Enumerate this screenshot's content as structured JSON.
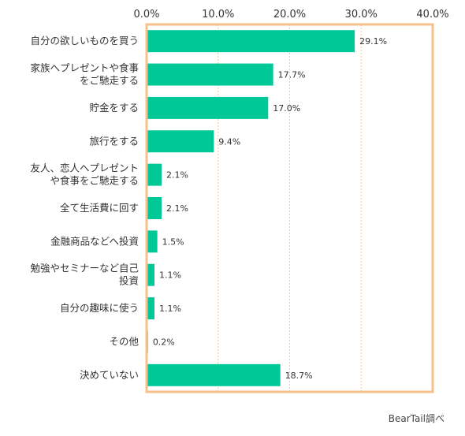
{
  "chart_data": {
    "type": "bar",
    "orientation": "horizontal",
    "categories": [
      "自分の欲しいものを買う",
      "家族へプレゼントや食事をご馳走する",
      "貯金をする",
      "旅行をする",
      "友人、恋人へプレゼントや食事をご馳走する",
      "全て生活費に回す",
      "金融商品などへ投資",
      "勉強やセミナーなど自己投資",
      "自分の趣味に使う",
      "その他",
      "決めていない"
    ],
    "category_lines": [
      [
        "自分の欲しいものを買う"
      ],
      [
        "家族へプレゼントや食事",
        "をご馳走する"
      ],
      [
        "貯金をする"
      ],
      [
        "旅行をする"
      ],
      [
        "友人、恋人へプレゼント",
        "や食事をご馳走する"
      ],
      [
        "全て生活費に回す"
      ],
      [
        "金融商品などへ投資"
      ],
      [
        "勉強やセミナーなど自己",
        "投資"
      ],
      [
        "自分の趣味に使う"
      ],
      [
        "その他"
      ],
      [
        "決めていない"
      ]
    ],
    "values": [
      29.1,
      17.7,
      17.0,
      9.4,
      2.1,
      2.1,
      1.5,
      1.1,
      1.1,
      0.2,
      18.7
    ],
    "value_labels": [
      "29.1%",
      "17.7%",
      "17.0%",
      "9.4%",
      "2.1%",
      "2.1%",
      "1.5%",
      "1.1%",
      "1.1%",
      "0.2%",
      "18.7%"
    ],
    "xlim": [
      0,
      40
    ],
    "x_ticks": [
      0,
      10,
      20,
      30,
      40
    ],
    "x_tick_labels": [
      "0.0%",
      "10.0%",
      "20.0%",
      "30.0%",
      "40.0%"
    ],
    "grid": true,
    "bar_color": "#00c896",
    "frame_color": "#f5c08a",
    "grid_color": "#f0c89a",
    "source_note": "BearTail調べ"
  }
}
